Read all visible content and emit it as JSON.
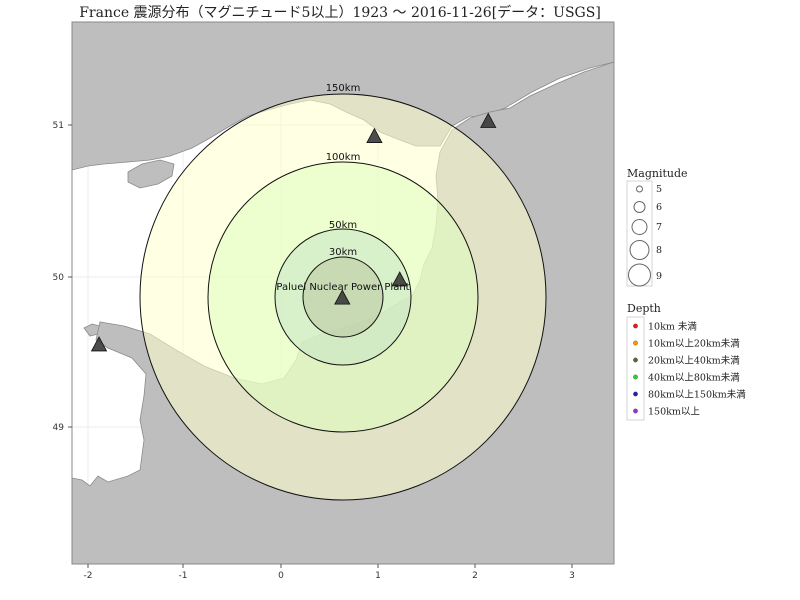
{
  "title": "France 震源分布（マグニチュード5以上）1923 ～ 2016-11-26[データ：USGS]",
  "map": {
    "x_ticks": [
      "-2",
      "-1",
      "0",
      "1",
      "2",
      "3"
    ],
    "y_ticks": [
      "51",
      "50",
      "49"
    ],
    "center_label": "Paluel Nuclear Power Plant",
    "rings": [
      {
        "label": "150km",
        "fill": "#ffffcc"
      },
      {
        "label": "100km",
        "fill": "#dfffbf"
      },
      {
        "label": "50km",
        "fill": "#c8e6c6"
      },
      {
        "label": "30km",
        "fill": "#b9c7a0"
      }
    ],
    "land_color": "#bebebe",
    "sea_color": "#ffffff",
    "marker_color": "#3a3a3a",
    "markers": [
      {
        "name": "marker-paluel",
        "lon": 0.63,
        "lat": 49.86
      },
      {
        "name": "marker-north-coast",
        "lon": 0.96,
        "lat": 50.93
      },
      {
        "name": "marker-northeast",
        "lon": 2.13,
        "lat": 51.03
      },
      {
        "name": "marker-east-of-plant",
        "lon": 1.22,
        "lat": 49.98
      },
      {
        "name": "marker-west",
        "lon": -1.87,
        "lat": 49.55
      }
    ]
  },
  "legend": {
    "magnitude_title": "Magnitude",
    "magnitude_items": [
      "5",
      "6",
      "7",
      "8",
      "9"
    ],
    "depth_title": "Depth",
    "depth_items": [
      {
        "label": "10km 未満",
        "color": "#e41a1c"
      },
      {
        "label": "10km以上20km未満",
        "color": "#ff9900"
      },
      {
        "label": "20km以上40km未満",
        "color": "#556b2f"
      },
      {
        "label": "40km以上80km未満",
        "color": "#33cc33"
      },
      {
        "label": "80km以上150km未満",
        "color": "#1f1fb4"
      },
      {
        "label": "150km以上",
        "color": "#9933cc"
      }
    ]
  }
}
